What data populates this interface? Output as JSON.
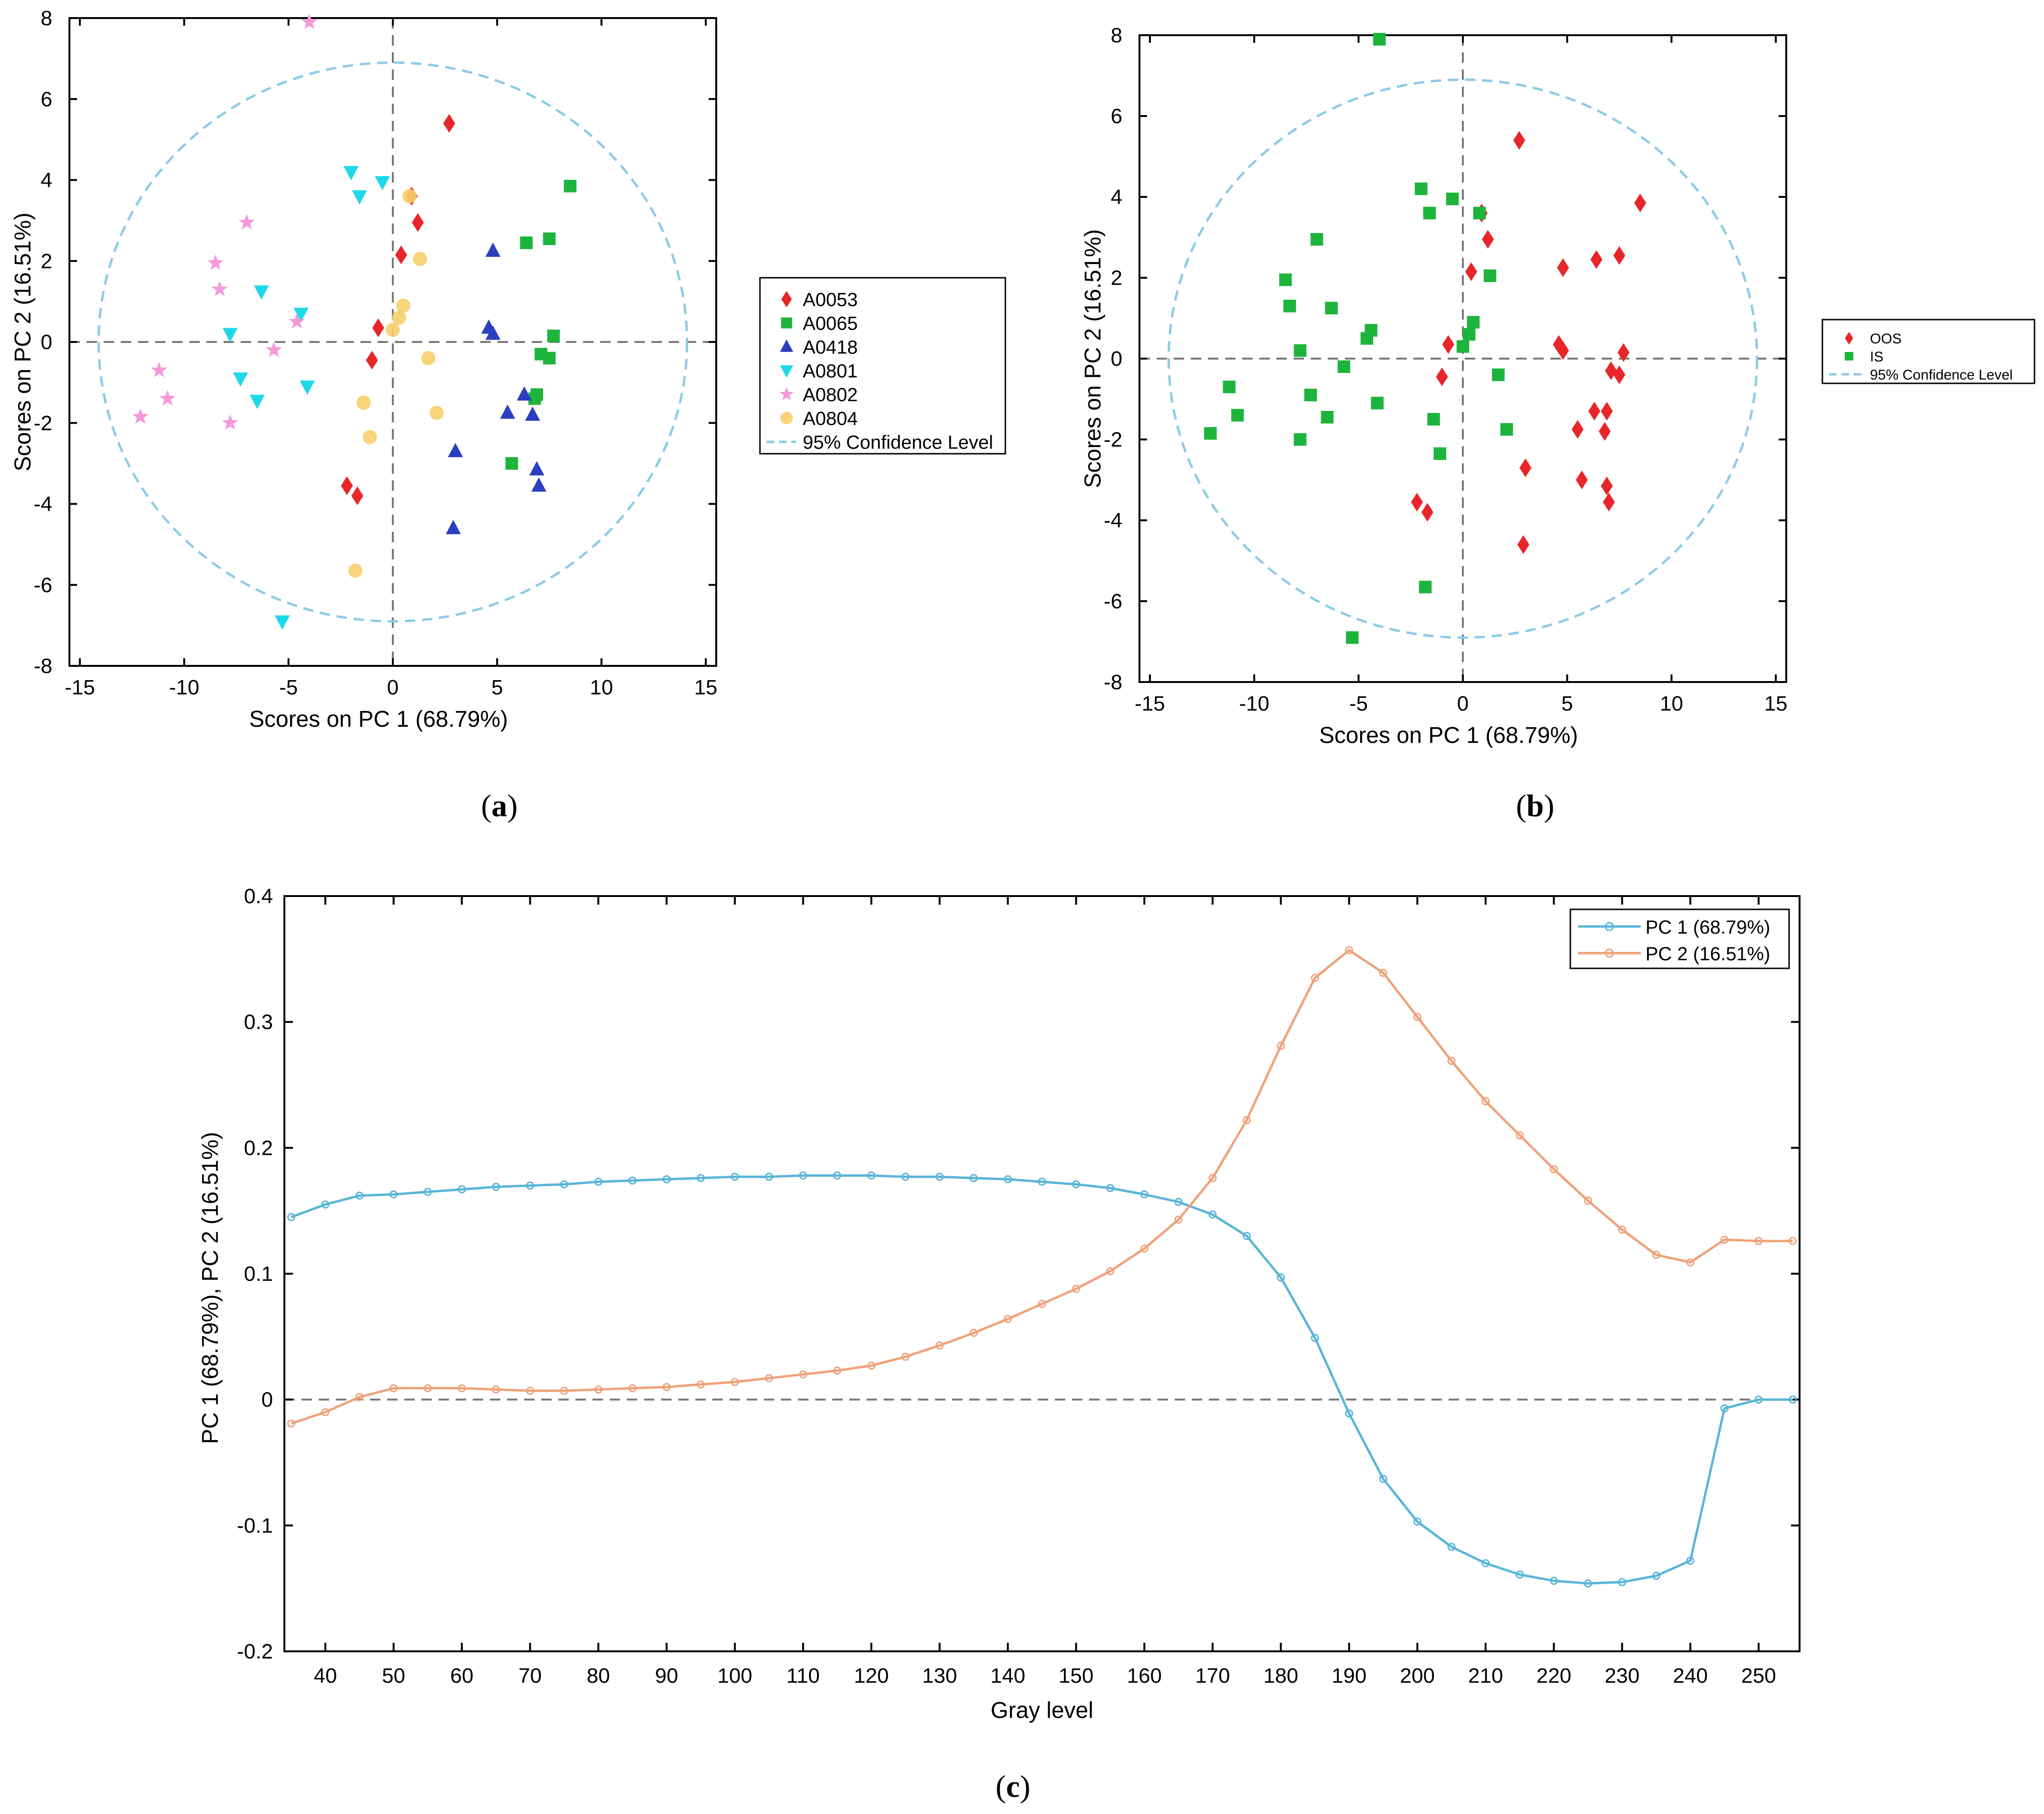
{
  "colors": {
    "A0053": "#e8262a",
    "A0065": "#1db43c",
    "A0418": "#2b3fc0",
    "A0801": "#1fd8ea",
    "A0802": "#f39ad8",
    "A0804": "#f6cf6a",
    "conf": "#8ccbe6",
    "pc1": "#5ab5d8",
    "pc2": "#efa27a"
  },
  "panel_labels": {
    "a": "a",
    "b": "b",
    "c": "c"
  },
  "chart_data": [
    {
      "id": "a",
      "type": "scatter",
      "title": "",
      "xlabel": "Scores on PC 1 (68.79%)",
      "ylabel": "Scores on PC 2 (16.51%)",
      "xlim": [
        -15.5,
        15.5
      ],
      "ylim": [
        -8,
        8
      ],
      "xticks": [
        -15,
        -10,
        -5,
        0,
        5,
        10,
        15
      ],
      "yticks": [
        -8,
        -6,
        -4,
        -2,
        0,
        2,
        4,
        6,
        8
      ],
      "confidence_ellipse": {
        "label": "95% Confidence Level",
        "rx": 14.1,
        "ry": 6.9
      },
      "legend_position": "outside-right",
      "series": [
        {
          "name": "A0053",
          "marker": "diamond",
          "points": [
            [
              2.7,
              5.4
            ],
            [
              0.9,
              3.6
            ],
            [
              1.2,
              2.95
            ],
            [
              0.4,
              2.15
            ],
            [
              -0.7,
              0.35
            ],
            [
              -1.0,
              -0.45
            ],
            [
              -2.2,
              -3.55
            ],
            [
              -1.7,
              -3.8
            ]
          ]
        },
        {
          "name": "A0065",
          "marker": "square",
          "points": [
            [
              8.5,
              3.85
            ],
            [
              7.5,
              2.55
            ],
            [
              6.4,
              2.45
            ],
            [
              7.7,
              0.15
            ],
            [
              7.1,
              -0.3
            ],
            [
              7.5,
              -0.4
            ],
            [
              6.9,
              -1.3
            ],
            [
              6.8,
              -1.4
            ],
            [
              5.7,
              -3.0
            ]
          ]
        },
        {
          "name": "A0418",
          "marker": "triangle-up",
          "points": [
            [
              4.8,
              2.25
            ],
            [
              4.6,
              0.35
            ],
            [
              4.8,
              0.2
            ],
            [
              6.3,
              -1.3
            ],
            [
              5.5,
              -1.75
            ],
            [
              6.7,
              -1.8
            ],
            [
              3.0,
              -2.7
            ],
            [
              6.9,
              -3.15
            ],
            [
              7.0,
              -3.55
            ],
            [
              2.9,
              -4.6
            ]
          ]
        },
        {
          "name": "A0801",
          "marker": "triangle-down",
          "points": [
            [
              -2.0,
              4.2
            ],
            [
              -0.5,
              3.95
            ],
            [
              -1.6,
              3.6
            ],
            [
              -6.3,
              1.25
            ],
            [
              -4.4,
              0.7
            ],
            [
              -7.8,
              0.2
            ],
            [
              -7.3,
              -0.9
            ],
            [
              -4.1,
              -1.1
            ],
            [
              -6.5,
              -1.45
            ],
            [
              -5.3,
              -6.9
            ]
          ]
        },
        {
          "name": "A0802",
          "marker": "star",
          "points": [
            [
              -4.0,
              7.9
            ],
            [
              -7.0,
              2.95
            ],
            [
              -8.5,
              1.95
            ],
            [
              -8.3,
              1.3
            ],
            [
              -4.6,
              0.5
            ],
            [
              -5.7,
              -0.2
            ],
            [
              -11.2,
              -0.7
            ],
            [
              -10.8,
              -1.4
            ],
            [
              -12.1,
              -1.85
            ],
            [
              -7.8,
              -2.0
            ]
          ]
        },
        {
          "name": "A0804",
          "marker": "circle",
          "points": [
            [
              0.8,
              3.6
            ],
            [
              1.3,
              2.05
            ],
            [
              0.5,
              0.9
            ],
            [
              0.3,
              0.6
            ],
            [
              0.0,
              0.3
            ],
            [
              1.7,
              -0.4
            ],
            [
              -1.4,
              -1.5
            ],
            [
              2.1,
              -1.75
            ],
            [
              -1.1,
              -2.35
            ],
            [
              -1.8,
              -5.65
            ]
          ]
        }
      ]
    },
    {
      "id": "b",
      "type": "scatter",
      "title": "",
      "xlabel": "Scores on PC 1 (68.79%)",
      "ylabel": "Scores on PC 2 (16.51%)",
      "xlim": [
        -15.5,
        15.5
      ],
      "ylim": [
        -8,
        8
      ],
      "xticks": [
        -15,
        -10,
        -5,
        0,
        5,
        10,
        15
      ],
      "yticks": [
        -8,
        -6,
        -4,
        -2,
        0,
        2,
        4,
        6,
        8
      ],
      "confidence_ellipse": {
        "label": "95% Confidence Level",
        "rx": 14.1,
        "ry": 6.9
      },
      "legend_position": "outside-right",
      "series": [
        {
          "name": "OOS",
          "marker": "diamond",
          "points": [
            [
              2.7,
              5.4
            ],
            [
              0.9,
              3.6
            ],
            [
              1.2,
              2.95
            ],
            [
              0.4,
              2.15
            ],
            [
              -0.7,
              0.35
            ],
            [
              -1.0,
              -0.45
            ],
            [
              -2.2,
              -3.55
            ],
            [
              -1.7,
              -3.8
            ],
            [
              8.5,
              3.85
            ],
            [
              7.5,
              2.55
            ],
            [
              6.4,
              2.45
            ],
            [
              4.8,
              2.25
            ],
            [
              4.6,
              0.35
            ],
            [
              4.8,
              0.2
            ],
            [
              7.7,
              0.15
            ],
            [
              7.1,
              -0.3
            ],
            [
              7.5,
              -0.4
            ],
            [
              6.9,
              -1.3
            ],
            [
              6.3,
              -1.3
            ],
            [
              5.5,
              -1.75
            ],
            [
              6.8,
              -1.8
            ],
            [
              3.0,
              -2.7
            ],
            [
              5.7,
              -3.0
            ],
            [
              6.9,
              -3.15
            ],
            [
              7.0,
              -3.55
            ],
            [
              2.9,
              -4.6
            ]
          ]
        },
        {
          "name": "IS",
          "marker": "square",
          "points": [
            [
              -4.0,
              7.9
            ],
            [
              -2.0,
              4.2
            ],
            [
              -0.5,
              3.95
            ],
            [
              -1.6,
              3.6
            ],
            [
              0.8,
              3.6
            ],
            [
              -7.0,
              2.95
            ],
            [
              1.3,
              2.05
            ],
            [
              -8.5,
              1.95
            ],
            [
              -8.3,
              1.3
            ],
            [
              -6.3,
              1.25
            ],
            [
              0.5,
              0.9
            ],
            [
              -4.4,
              0.7
            ],
            [
              0.3,
              0.6
            ],
            [
              -4.6,
              0.5
            ],
            [
              0.0,
              0.3
            ],
            [
              -7.8,
              0.2
            ],
            [
              -5.7,
              -0.2
            ],
            [
              -11.2,
              -0.7
            ],
            [
              1.7,
              -0.4
            ],
            [
              -7.3,
              -0.9
            ],
            [
              -4.1,
              -1.1
            ],
            [
              -10.8,
              -1.4
            ],
            [
              -6.5,
              -1.45
            ],
            [
              -1.4,
              -1.5
            ],
            [
              2.1,
              -1.75
            ],
            [
              -12.1,
              -1.85
            ],
            [
              -7.8,
              -2.0
            ],
            [
              -1.1,
              -2.35
            ],
            [
              -1.8,
              -5.65
            ],
            [
              -5.3,
              -6.9
            ]
          ]
        }
      ]
    },
    {
      "id": "c",
      "type": "line",
      "title": "",
      "xlabel": "Gray level",
      "ylabel": "PC 1 (68.79%), PC 2 (16.51%)",
      "xlim": [
        34,
        256
      ],
      "ylim": [
        -0.2,
        0.4
      ],
      "xticks": [
        40,
        50,
        60,
        70,
        80,
        90,
        100,
        110,
        120,
        130,
        140,
        150,
        160,
        170,
        180,
        190,
        200,
        210,
        220,
        230,
        240,
        250
      ],
      "yticks": [
        -0.2,
        -0.1,
        0,
        0.1,
        0.2,
        0.3,
        0.4
      ],
      "ytick_labels": [
        "-0.2",
        "-0.1",
        "0",
        "0.1",
        "0.2",
        "0.3",
        "0.4"
      ],
      "legend_position": "top-right",
      "x": [
        35,
        40,
        45,
        50,
        55,
        60,
        65,
        70,
        75,
        80,
        85,
        90,
        95,
        100,
        105,
        110,
        115,
        120,
        125,
        130,
        135,
        140,
        145,
        150,
        155,
        160,
        165,
        170,
        175,
        180,
        185,
        190,
        195,
        200,
        205,
        210,
        215,
        220,
        225,
        230,
        235,
        240,
        245,
        250,
        255
      ],
      "series": [
        {
          "name": "PC 1 (68.79%)",
          "values": [
            0.145,
            0.155,
            0.162,
            0.163,
            0.165,
            0.167,
            0.169,
            0.17,
            0.171,
            0.173,
            0.174,
            0.175,
            0.176,
            0.177,
            0.177,
            0.178,
            0.178,
            0.178,
            0.177,
            0.177,
            0.176,
            0.175,
            0.173,
            0.171,
            0.168,
            0.163,
            0.157,
            0.147,
            0.13,
            0.097,
            0.049,
            -0.011,
            -0.063,
            -0.097,
            -0.117,
            -0.13,
            -0.139,
            -0.144,
            -0.146,
            -0.145,
            -0.14,
            -0.128,
            -0.007,
            0.0,
            0.0
          ]
        },
        {
          "name": "PC 2 (16.51%)",
          "values": [
            -0.019,
            -0.01,
            0.002,
            0.009,
            0.009,
            0.009,
            0.008,
            0.007,
            0.007,
            0.008,
            0.009,
            0.01,
            0.012,
            0.014,
            0.017,
            0.02,
            0.023,
            0.027,
            0.034,
            0.043,
            0.053,
            0.064,
            0.076,
            0.088,
            0.102,
            0.12,
            0.143,
            0.176,
            0.222,
            0.281,
            0.335,
            0.357,
            0.339,
            0.304,
            0.269,
            0.237,
            0.21,
            0.183,
            0.158,
            0.135,
            0.115,
            0.109,
            0.127,
            0.126,
            0.126
          ]
        }
      ]
    }
  ]
}
